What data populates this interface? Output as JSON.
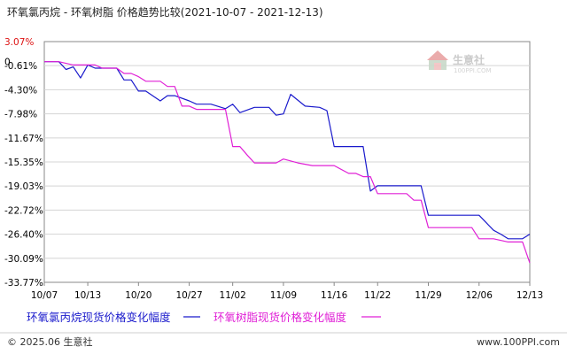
{
  "page": {
    "title": "环氧氯丙烷 - 环氧树脂 价格趋势比较",
    "date_range": "(2021-10-07 - 2021-12-13)",
    "footer_left": "© 2025.06 生意社",
    "footer_right": "www.100PPI.com",
    "watermark_name": "生意社",
    "watermark_url": "100PPI.COM",
    "y_zero_marker": "0"
  },
  "colors": {
    "series1": "#1a1acc",
    "series2": "#e020d6",
    "title": "#222222",
    "top_tick": "#dd1111"
  },
  "chart_data": {
    "type": "line",
    "title": "环氧氯丙烷 - 环氧树脂 价格趋势比较(2021-10-07 - 2021-12-13)",
    "xlabel": "",
    "ylabel": "",
    "x_start": "2021-10-07",
    "x_end": "2021-12-13",
    "xlim": [
      "2021-10-07",
      "2021-12-13"
    ],
    "ylim": [
      -33.77,
      3.07
    ],
    "grid": true,
    "legend_position": "bottom",
    "y_ticks": [
      3.07,
      -0.61,
      -4.3,
      -7.98,
      -11.67,
      -15.35,
      -19.03,
      -22.72,
      -26.4,
      -30.09,
      -33.77
    ],
    "y_tick_labels": [
      "3.07%",
      "-0.61%",
      "-4.30%",
      "-7.98%",
      "-11.67%",
      "-15.35%",
      "-19.03%",
      "-22.72%",
      "-26.40%",
      "-30.09%",
      "-33.77%"
    ],
    "x_ticks": [
      "2021-10-07",
      "2021-10-13",
      "2021-10-20",
      "2021-10-27",
      "2021-11-02",
      "2021-11-09",
      "2021-11-16",
      "2021-11-22",
      "2021-11-29",
      "2021-12-06",
      "2021-12-13"
    ],
    "x_tick_labels": [
      "10/07",
      "10/13",
      "10/20",
      "10/27",
      "11/02",
      "11/09",
      "11/16",
      "11/22",
      "11/29",
      "12/06",
      "12/13"
    ],
    "series": [
      {
        "name": "环氧氯丙烷现货价格变化幅度",
        "x": [
          "2021-10-07",
          "2021-10-08",
          "2021-10-09",
          "2021-10-10",
          "2021-10-11",
          "2021-10-12",
          "2021-10-13",
          "2021-10-14",
          "2021-10-15",
          "2021-10-16",
          "2021-10-17",
          "2021-10-18",
          "2021-10-19",
          "2021-10-20",
          "2021-10-21",
          "2021-10-23",
          "2021-10-24",
          "2021-10-25",
          "2021-10-27",
          "2021-10-28",
          "2021-10-30",
          "2021-11-01",
          "2021-11-02",
          "2021-11-03",
          "2021-11-05",
          "2021-11-06",
          "2021-11-07",
          "2021-11-08",
          "2021-11-09",
          "2021-11-10",
          "2021-11-12",
          "2021-11-14",
          "2021-11-15",
          "2021-11-16",
          "2021-11-18",
          "2021-11-20",
          "2021-11-21",
          "2021-11-22",
          "2021-11-23",
          "2021-11-25",
          "2021-11-27",
          "2021-11-28",
          "2021-11-29",
          "2021-12-01",
          "2021-12-03",
          "2021-12-04",
          "2021-12-06",
          "2021-12-08",
          "2021-12-09",
          "2021-12-10",
          "2021-12-11",
          "2021-12-12",
          "2021-12-13"
        ],
        "y": [
          0,
          0,
          0,
          -1.2,
          -0.8,
          -2.5,
          -0.5,
          -1.0,
          -1.0,
          -1.0,
          -1.0,
          -2.8,
          -2.8,
          -4.5,
          -4.5,
          -6.0,
          -5.2,
          -5.2,
          -6.0,
          -6.5,
          -6.5,
          -7.2,
          -6.5,
          -7.8,
          -7.0,
          -7.0,
          -7.0,
          -8.2,
          -8.0,
          -5.0,
          -6.8,
          -7.0,
          -7.5,
          -13.0,
          -13.0,
          -13.0,
          -19.8,
          -19.0,
          -19.0,
          -19.0,
          -19.0,
          -19.0,
          -23.5,
          -23.5,
          -23.5,
          -23.5,
          -23.5,
          -25.8,
          -26.4,
          -27.1,
          -27.1,
          -27.1,
          -26.4
        ]
      },
      {
        "name": "环氧树脂现货价格变化幅度",
        "x": [
          "2021-10-07",
          "2021-10-09",
          "2021-10-11",
          "2021-10-13",
          "2021-10-14",
          "2021-10-15",
          "2021-10-16",
          "2021-10-17",
          "2021-10-18",
          "2021-10-19",
          "2021-10-20",
          "2021-10-21",
          "2021-10-22",
          "2021-10-23",
          "2021-10-24",
          "2021-10-25",
          "2021-10-26",
          "2021-10-27",
          "2021-10-28",
          "2021-11-01",
          "2021-11-02",
          "2021-11-03",
          "2021-11-04",
          "2021-11-05",
          "2021-11-06",
          "2021-11-07",
          "2021-11-08",
          "2021-11-09",
          "2021-11-11",
          "2021-11-13",
          "2021-11-14",
          "2021-11-15",
          "2021-11-16",
          "2021-11-18",
          "2021-11-19",
          "2021-11-20",
          "2021-11-21",
          "2021-11-22",
          "2021-11-24",
          "2021-11-26",
          "2021-11-27",
          "2021-11-28",
          "2021-11-29",
          "2021-12-01",
          "2021-12-03",
          "2021-12-04",
          "2021-12-05",
          "2021-12-06",
          "2021-12-08",
          "2021-12-10",
          "2021-12-12",
          "2021-12-13"
        ],
        "y": [
          0,
          0,
          -0.5,
          -0.5,
          -0.5,
          -1.0,
          -1.0,
          -1.0,
          -1.8,
          -1.8,
          -2.3,
          -3.0,
          -3.0,
          -3.0,
          -3.8,
          -3.8,
          -6.8,
          -6.8,
          -7.3,
          -7.3,
          -13.0,
          -13.0,
          -14.3,
          -15.5,
          -15.5,
          -15.5,
          -15.5,
          -14.9,
          -15.5,
          -15.9,
          -15.9,
          -15.9,
          -15.9,
          -17.1,
          -17.1,
          -17.6,
          -17.6,
          -20.2,
          -20.2,
          -20.2,
          -21.2,
          -21.2,
          -25.4,
          -25.4,
          -25.4,
          -25.4,
          -25.4,
          -27.1,
          -27.1,
          -27.6,
          -27.6,
          -30.8
        ]
      }
    ]
  }
}
